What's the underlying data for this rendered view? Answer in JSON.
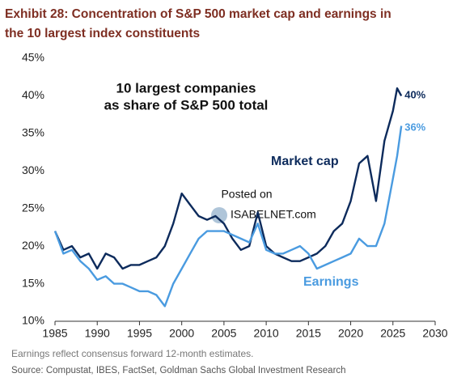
{
  "chart_data": {
    "type": "line",
    "title": [
      "Exhibit 28: Concentration of S&P 500 market cap and earnings in",
      "the 10 largest index constituents"
    ],
    "annotation": [
      "10 largest companies",
      "as share of S&P 500 total"
    ],
    "watermark": [
      "Posted on",
      "ISABELNET.com"
    ],
    "footnote": "Earnings reflect consensus forward 12-month estimates.",
    "source": "Source: Compustat, IBES, FactSet, Goldman Sachs Global Investment Research",
    "x": [
      1985,
      1986,
      1987,
      1988,
      1989,
      1990,
      1991,
      1992,
      1993,
      1994,
      1995,
      1996,
      1997,
      1998,
      1999,
      2000,
      2001,
      2002,
      2003,
      2004,
      2005,
      2006,
      2007,
      2008,
      2009,
      2010,
      2011,
      2012,
      2013,
      2014,
      2015,
      2016,
      2017,
      2018,
      2019,
      2020,
      2021,
      2022,
      2023,
      2024,
      2025,
      2025.5,
      2026
    ],
    "series": [
      {
        "name": "Market cap",
        "color": "#0d2b5c",
        "end_label": "40%",
        "values": [
          22,
          19.5,
          20,
          18.5,
          19,
          17,
          19,
          18.5,
          17,
          17.5,
          17.5,
          18,
          18.5,
          20,
          23,
          27,
          25.5,
          24,
          23.5,
          24,
          23,
          21,
          19.5,
          20,
          24.5,
          20,
          19,
          18.5,
          18,
          18,
          18.5,
          19,
          20,
          22,
          23,
          26,
          31,
          32,
          26,
          34,
          38,
          41,
          40
        ]
      },
      {
        "name": "Earnings",
        "color": "#4a9be0",
        "end_label": "36%",
        "values": [
          22,
          19,
          19.5,
          18,
          17,
          15.5,
          16,
          15,
          15,
          14.5,
          14,
          14,
          13.5,
          12,
          15,
          17,
          19,
          21,
          22,
          22,
          22,
          21.5,
          21,
          20.5,
          23,
          19.5,
          19,
          19,
          19.5,
          20,
          19,
          17,
          17.5,
          18,
          18.5,
          19,
          21,
          20,
          20,
          23,
          29,
          32,
          36
        ]
      }
    ],
    "xlim": [
      1985,
      2030
    ],
    "xticks": [
      1985,
      1990,
      1995,
      2000,
      2005,
      2010,
      2015,
      2020,
      2025,
      2030
    ],
    "ylim": [
      10,
      45
    ],
    "yticks": [
      {
        "value": 10,
        "label": "10%"
      },
      {
        "value": 15,
        "label": "15%"
      },
      {
        "value": 20,
        "label": "20%"
      },
      {
        "value": 25,
        "label": "25%"
      },
      {
        "value": 30,
        "label": "30%"
      },
      {
        "value": 35,
        "label": "35%"
      },
      {
        "value": 40,
        "label": "40%"
      },
      {
        "value": 45,
        "label": "45%"
      }
    ],
    "grid": false
  }
}
